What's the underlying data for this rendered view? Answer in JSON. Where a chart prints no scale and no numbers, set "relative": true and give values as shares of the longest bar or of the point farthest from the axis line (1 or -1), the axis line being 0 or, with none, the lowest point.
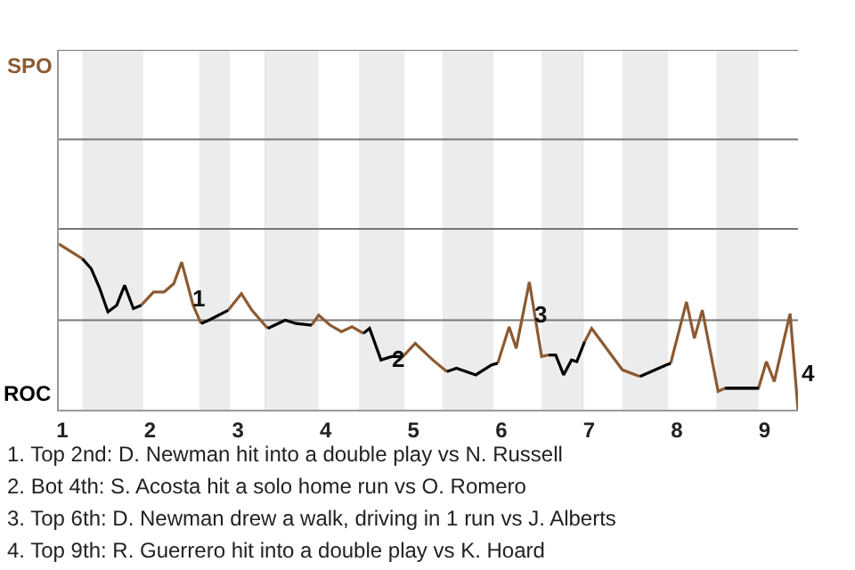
{
  "chart_data": {
    "type": "line",
    "relative": true,
    "x": [
      0.96,
      1.23,
      1.33,
      1.42,
      1.52,
      1.62,
      1.71,
      1.81,
      1.9,
      2.04,
      2.16,
      2.27,
      2.36,
      2.49,
      2.58,
      2.67,
      2.89,
      3.04,
      3.16,
      3.34,
      3.54,
      3.66,
      3.84,
      3.92,
      4.05,
      4.18,
      4.3,
      4.43,
      4.5,
      4.63,
      4.75,
      4.88,
      5.02,
      5.22,
      5.38,
      5.49,
      5.71,
      5.89,
      5.96,
      6.09,
      6.17,
      6.32,
      6.46,
      6.54,
      6.62,
      6.71,
      6.8,
      6.86,
      6.95,
      7.03,
      7.38,
      7.58,
      7.88,
      7.93,
      8.11,
      8.2,
      8.29,
      8.47,
      8.55,
      8.93,
      9.02,
      9.11,
      9.29,
      9.38
    ],
    "series": [
      {
        "color": "#8c5a32",
        "values": [
          1,
          0.91,
          null,
          null,
          null,
          null,
          null,
          null,
          0.63,
          0.71,
          0.71,
          0.76,
          0.89,
          0.63,
          0.52,
          null,
          0.6,
          0.7,
          0.6,
          0.49,
          null,
          null,
          0.51,
          0.57,
          0.51,
          0.47,
          0.5,
          0.46,
          null,
          null,
          null,
          0.32,
          0.4,
          0.3,
          0.23,
          null,
          null,
          null,
          0.28,
          0.5,
          0.37,
          0.77,
          0.32,
          0.33,
          null,
          null,
          null,
          null,
          0.41,
          0.49,
          0.24,
          0.2,
          null,
          0.28,
          0.65,
          0.43,
          0.6,
          0.11,
          0.13,
          0.13,
          0.29,
          0.17,
          0.58,
          0
        ]
      },
      {
        "color": "#000000",
        "values": [
          null,
          0.91,
          0.85,
          0.74,
          0.59,
          0.63,
          0.75,
          0.61,
          0.63,
          null,
          null,
          null,
          null,
          null,
          0.52,
          0.54,
          0.6,
          null,
          null,
          0.49,
          0.54,
          0.52,
          0.51,
          null,
          null,
          null,
          null,
          0.46,
          0.49,
          0.3,
          0.32,
          0.32,
          null,
          null,
          0.23,
          0.25,
          0.21,
          0.27,
          0.28,
          null,
          null,
          null,
          null,
          0.33,
          0.33,
          0.21,
          0.3,
          0.29,
          0.41,
          null,
          null,
          0.2,
          0.27,
          0.28,
          null,
          null,
          null,
          null,
          0.13,
          0.13,
          null,
          null,
          null,
          null
        ]
      }
    ],
    "xlim": [
      0.96,
      9.38
    ],
    "xticks": [
      1,
      2,
      3,
      4,
      5,
      6,
      7,
      8,
      9
    ],
    "ref_lines": [
      {
        "axis": "y",
        "value": 0.54,
        "color": "#777777"
      },
      {
        "axis": "y",
        "value": 1.09,
        "color": "#777777"
      },
      {
        "axis": "y",
        "value": 1.63,
        "color": "#777777"
      },
      {
        "axis": "y",
        "value": 2.17,
        "color": "#777777"
      }
    ],
    "marker": "none",
    "line_style": "solid",
    "bands": [
      {
        "axis": "x",
        "from": 1.23,
        "to": 1.92,
        "color": "#ececec"
      },
      {
        "axis": "x",
        "from": 2.56,
        "to": 2.91,
        "color": "#ececec"
      },
      {
        "axis": "x",
        "from": 3.3,
        "to": 3.92,
        "color": "#ececec"
      },
      {
        "axis": "x",
        "from": 4.38,
        "to": 4.9,
        "color": "#ececec"
      },
      {
        "axis": "x",
        "from": 5.33,
        "to": 5.91,
        "color": "#ececec"
      },
      {
        "axis": "x",
        "from": 6.46,
        "to": 6.94,
        "color": "#ececec"
      },
      {
        "axis": "x",
        "from": 7.38,
        "to": 7.9,
        "color": "#ececec"
      },
      {
        "axis": "x",
        "from": 8.45,
        "to": 8.93,
        "color": "#ececec"
      }
    ],
    "annotations": [
      {
        "text": "1",
        "x": 2.45,
        "y": 0.67
      },
      {
        "text": "2",
        "x": 4.72,
        "y": 0.31
      },
      {
        "text": "3",
        "x": 6.34,
        "y": 0.58
      },
      "SPO",
      "ROC",
      {
        "text": "4",
        "x": 9.38,
        "y": 0.22
      },
      "1. Top 2nd: D. Newman hit into a double play vs N. Russell",
      "2. Bot 4th: S. Acosta hit a solo home run vs O. Romero",
      "3. Top 6th: D. Newman drew a walk, driving in 1 run vs J. Alberts",
      "4. Top 9th: R. Guerrero hit into a double play vs K. Hoard"
    ]
  }
}
